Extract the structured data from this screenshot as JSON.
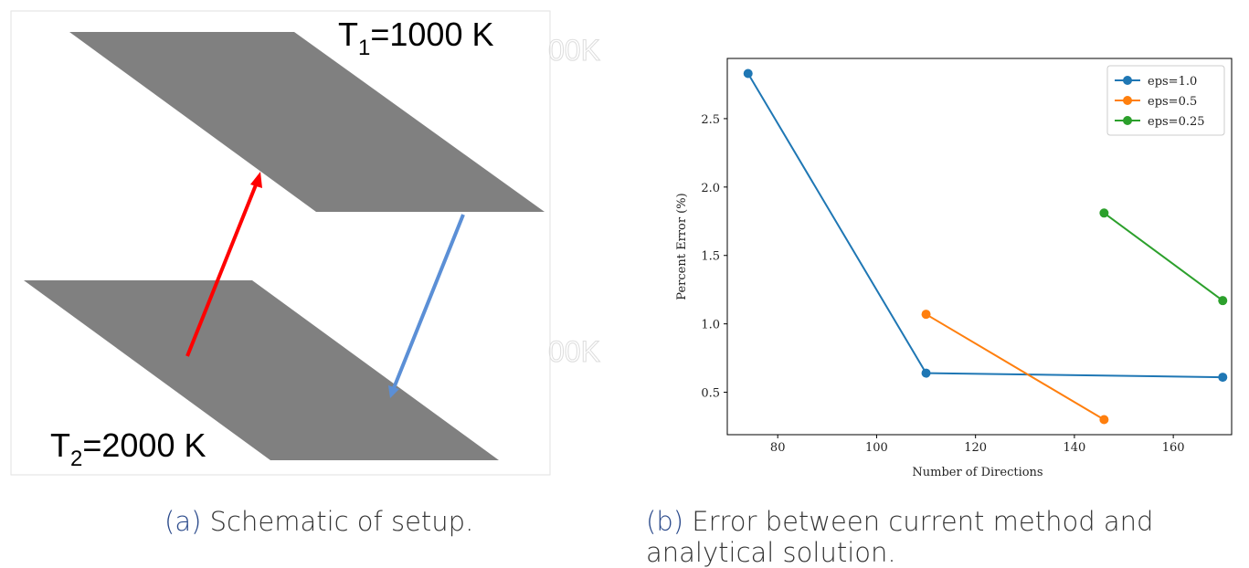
{
  "schematic": {
    "top_label": {
      "base": "T",
      "sub": "1",
      "rest": "=1000 K"
    },
    "bottom_label": {
      "base": "T",
      "sub": "2",
      "rest": "=2000 K"
    },
    "ghost_texts": [
      "00K",
      "00K"
    ]
  },
  "chart_data": {
    "type": "line",
    "xlabel": "Number of Directions",
    "ylabel": "Percent Error (%)",
    "xlim": [
      69.8,
      171.8
    ],
    "ylim": [
      0.19,
      2.94
    ],
    "xticks": [
      80,
      100,
      120,
      140,
      160
    ],
    "yticks": [
      0.5,
      {
        "value": 1,
        "label": "1.0"
      },
      1.5,
      {
        "value": 2,
        "label": "2.0"
      },
      2.5
    ],
    "legend": "upper right",
    "grid": false,
    "series": [
      {
        "name": "eps=1.0",
        "color": "#1f77b4",
        "x": [
          74,
          110,
          170
        ],
        "values": [
          2.83,
          0.64,
          0.61
        ]
      },
      {
        "name": "eps=0.5",
        "color": "#ff7f0e",
        "x": [
          110,
          146
        ],
        "values": [
          1.07,
          0.3
        ]
      },
      {
        "name": "eps=0.25",
        "color": "#2ca02c",
        "x": [
          146,
          170
        ],
        "values": [
          1.81,
          1.17
        ]
      }
    ]
  },
  "captions": {
    "a": {
      "label": "(a)",
      "text": "Schematic of setup."
    },
    "b": {
      "label": "(b)",
      "text": "Error between current method and analytical solution."
    }
  }
}
